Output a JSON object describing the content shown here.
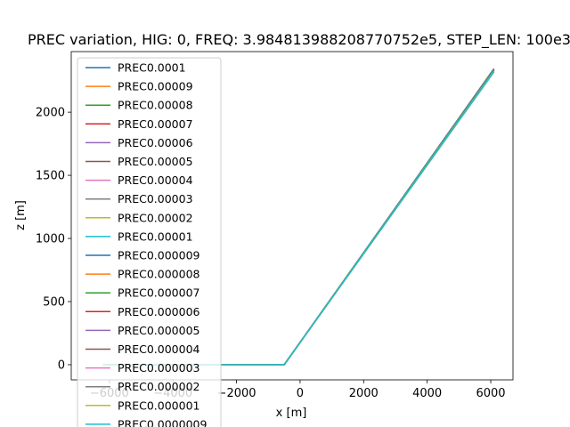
{
  "chart_data": {
    "type": "line",
    "title": "PREC variation, HIG: 0, FREQ: 3.984813988208770752e5, STEP_LEN: 100e3",
    "xlabel": "x [m]",
    "ylabel": "z [m]",
    "xlim": [
      -7200,
      6700
    ],
    "ylim": [
      -120,
      2480
    ],
    "xticks": [
      -6000,
      -4000,
      -2000,
      0,
      2000,
      4000,
      6000
    ],
    "xtick_labels": [
      "−6000",
      "−4000",
      "−2000",
      "0",
      "2000",
      "4000",
      "6000"
    ],
    "yticks": [
      0,
      500,
      1000,
      1500,
      2000
    ],
    "ytick_labels": [
      "0",
      "500",
      "1000",
      "1500",
      "2000"
    ],
    "legend_position": "upper left",
    "grid": false,
    "colors": [
      "#1f77b4",
      "#ff7f0e",
      "#2ca02c",
      "#d62728",
      "#9467bd",
      "#8c564b",
      "#e377c2",
      "#7f7f7f",
      "#bcbd22",
      "#17becf"
    ],
    "series": [
      {
        "name": "PREC0.0001",
        "x": [
          -6200,
          -500,
          -400,
          6100
        ],
        "y": [
          0,
          0,
          35,
          2345
        ]
      },
      {
        "name": "PREC0.00009",
        "x": [
          -6200,
          -500,
          -400,
          6100
        ],
        "y": [
          0,
          0,
          35,
          2342
        ]
      },
      {
        "name": "PREC0.00008",
        "x": [
          -6200,
          -500,
          -400,
          6100
        ],
        "y": [
          0,
          0,
          35,
          2339
        ]
      },
      {
        "name": "PREC0.00007",
        "x": [
          -6200,
          -500,
          -400,
          6100
        ],
        "y": [
          0,
          0,
          35,
          2336
        ]
      },
      {
        "name": "PREC0.00006",
        "x": [
          -6200,
          -500,
          -400,
          6100
        ],
        "y": [
          0,
          0,
          35,
          2333
        ]
      },
      {
        "name": "PREC0.00005",
        "x": [
          -6200,
          -500,
          -400,
          6100
        ],
        "y": [
          0,
          0,
          35,
          2330
        ]
      },
      {
        "name": "PREC0.00004",
        "x": [
          -6200,
          -500,
          -400,
          6100
        ],
        "y": [
          0,
          0,
          35,
          2327
        ]
      },
      {
        "name": "PREC0.00003",
        "x": [
          -6200,
          -500,
          -400,
          6100
        ],
        "y": [
          0,
          0,
          35,
          2324
        ]
      },
      {
        "name": "PREC0.00002",
        "x": [
          -6200,
          -500,
          -400,
          6100
        ],
        "y": [
          0,
          0,
          35,
          2321
        ]
      },
      {
        "name": "PREC0.00001",
        "x": [
          -6200,
          -500,
          -400,
          6100
        ],
        "y": [
          0,
          0,
          35,
          2318
        ]
      },
      {
        "name": "PREC0.000009",
        "x": [
          -6200,
          -500,
          -400,
          6100
        ],
        "y": [
          0,
          0,
          35,
          2344
        ]
      },
      {
        "name": "PREC0.000008",
        "x": [
          -6200,
          -500,
          -400,
          6100
        ],
        "y": [
          0,
          0,
          35,
          2341
        ]
      },
      {
        "name": "PREC0.000007",
        "x": [
          -6200,
          -500,
          -400,
          6100
        ],
        "y": [
          0,
          0,
          35,
          2338
        ]
      },
      {
        "name": "PREC0.000006",
        "x": [
          -6200,
          -500,
          -400,
          6100
        ],
        "y": [
          0,
          0,
          35,
          2335
        ]
      },
      {
        "name": "PREC0.000005",
        "x": [
          -6200,
          -500,
          -400,
          6100
        ],
        "y": [
          0,
          0,
          35,
          2332
        ]
      },
      {
        "name": "PREC0.000004",
        "x": [
          -6200,
          -500,
          -400,
          6100
        ],
        "y": [
          0,
          0,
          35,
          2329
        ]
      },
      {
        "name": "PREC0.000003",
        "x": [
          -6200,
          -500,
          -400,
          6100
        ],
        "y": [
          0,
          0,
          35,
          2326
        ]
      },
      {
        "name": "PREC0.000002",
        "x": [
          -6200,
          -500,
          -400,
          6100
        ],
        "y": [
          0,
          0,
          35,
          2330
        ]
      },
      {
        "name": "PREC0.000001",
        "x": [
          -6200,
          -500,
          -400,
          6100
        ],
        "y": [
          0,
          0,
          35,
          2328
        ]
      },
      {
        "name": "PREC0.0000009",
        "x": [
          -6200,
          -500,
          -400,
          6100
        ],
        "y": [
          0,
          0,
          35,
          2331
        ]
      }
    ]
  }
}
